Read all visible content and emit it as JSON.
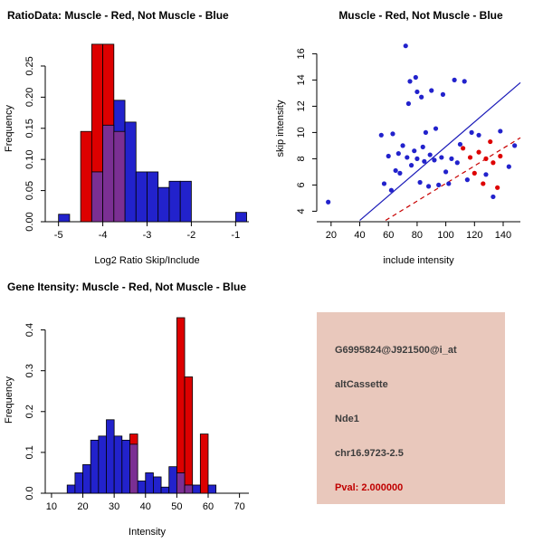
{
  "colors": {
    "red": "#dd0000",
    "blue": "#2222cc",
    "overlap": "#7b2f93",
    "line_blue": "#1a1ab8",
    "line_red": "#c80000",
    "info_bg": "#e9c8bc",
    "pval_red": "#c00000"
  },
  "info_box": {
    "probe_id": "G6995824@J921500@i_at",
    "splice_type": "altCassette",
    "gene_name": "Nde1",
    "locus": "chr16.9723-2.5",
    "pval": "Pval: 2.000000"
  },
  "chart_data": [
    {
      "type": "bar",
      "variant": "overlaid-histogram",
      "title": "RatioData: Muscle - Red, Not Muscle - Blue",
      "xlabel": "Log2 Ratio Skip/Include",
      "ylabel": "Frequency",
      "xlim": [
        -5.3,
        -0.7
      ],
      "ylim": [
        0,
        0.295
      ],
      "bin_width": 0.25,
      "grid": false,
      "xticks": {
        "values": [
          -5,
          -4,
          -3,
          -2,
          -1
        ],
        "labels": [
          "-5",
          "-4",
          "-3",
          "-2",
          "-1"
        ]
      },
      "yticks": {
        "values": [
          0,
          0.05,
          0.1,
          0.15,
          0.2,
          0.25
        ],
        "labels": [
          "0.00",
          "0.05",
          "0.10",
          "0.15",
          "0.20",
          "0.25"
        ]
      },
      "series": [
        {
          "name": "Muscle",
          "color": "red",
          "bins": [
            {
              "x": -4.5,
              "h": 0.145
            },
            {
              "x": -4.25,
              "h": 0.285
            },
            {
              "x": -4.0,
              "h": 0.285
            },
            {
              "x": -3.75,
              "h": 0.145
            }
          ]
        },
        {
          "name": "Not Muscle",
          "color": "blue",
          "bins": [
            {
              "x": -5.0,
              "h": 0.012
            },
            {
              "x": -4.25,
              "h": 0.08
            },
            {
              "x": -4.0,
              "h": 0.155
            },
            {
              "x": -3.75,
              "h": 0.195
            },
            {
              "x": -3.5,
              "h": 0.16
            },
            {
              "x": -3.25,
              "h": 0.08
            },
            {
              "x": -3.0,
              "h": 0.08
            },
            {
              "x": -2.75,
              "h": 0.055
            },
            {
              "x": -2.5,
              "h": 0.065
            },
            {
              "x": -2.25,
              "h": 0.065
            },
            {
              "x": -1.0,
              "h": 0.015
            }
          ]
        }
      ]
    },
    {
      "type": "scatter",
      "title": "Muscle - Red, Not Muscle - Blue",
      "xlabel": "include intensity",
      "ylabel": "skip intensity",
      "xlim": [
        10,
        152
      ],
      "ylim": [
        3.2,
        17.2
      ],
      "grid": false,
      "xticks": {
        "values": [
          20,
          40,
          60,
          80,
          100,
          120,
          140
        ],
        "labels": [
          "20",
          "40",
          "60",
          "80",
          "100",
          "120",
          "140"
        ]
      },
      "yticks": {
        "values": [
          4,
          6,
          8,
          10,
          12,
          14,
          16
        ],
        "labels": [
          "4",
          "6",
          "8",
          "10",
          "12",
          "14",
          "16"
        ]
      },
      "series": [
        {
          "name": "Not Muscle",
          "color": "blue",
          "points": [
            [
              18,
              4.7
            ],
            [
              55,
              9.8
            ],
            [
              57,
              6.1
            ],
            [
              60,
              8.2
            ],
            [
              62,
              5.6
            ],
            [
              63,
              9.9
            ],
            [
              65,
              7.1
            ],
            [
              67,
              8.4
            ],
            [
              68,
              6.9
            ],
            [
              70,
              9.0
            ],
            [
              72,
              16.6
            ],
            [
              73,
              8.1
            ],
            [
              74,
              12.2
            ],
            [
              75,
              13.9
            ],
            [
              76,
              7.5
            ],
            [
              78,
              8.6
            ],
            [
              79,
              14.2
            ],
            [
              80,
              13.1
            ],
            [
              80,
              8.0
            ],
            [
              82,
              6.2
            ],
            [
              83,
              12.7
            ],
            [
              84,
              8.9
            ],
            [
              85,
              7.8
            ],
            [
              86,
              10.0
            ],
            [
              88,
              5.9
            ],
            [
              89,
              8.3
            ],
            [
              90,
              13.2
            ],
            [
              92,
              7.9
            ],
            [
              93,
              10.3
            ],
            [
              95,
              6.0
            ],
            [
              97,
              8.1
            ],
            [
              98,
              12.9
            ],
            [
              100,
              7.0
            ],
            [
              102,
              6.1
            ],
            [
              104,
              8.0
            ],
            [
              106,
              14.0
            ],
            [
              108,
              7.7
            ],
            [
              110,
              9.1
            ],
            [
              113,
              13.9
            ],
            [
              115,
              6.4
            ],
            [
              118,
              10.0
            ],
            [
              123,
              9.8
            ],
            [
              128,
              6.8
            ],
            [
              133,
              5.1
            ],
            [
              138,
              10.1
            ],
            [
              144,
              7.4
            ],
            [
              148,
              9.0
            ]
          ]
        },
        {
          "name": "Muscle",
          "color": "red",
          "points": [
            [
              112,
              8.8
            ],
            [
              117,
              8.1
            ],
            [
              120,
              6.9
            ],
            [
              123,
              8.5
            ],
            [
              126,
              6.1
            ],
            [
              128,
              8.0
            ],
            [
              131,
              9.3
            ],
            [
              133,
              7.7
            ],
            [
              136,
              5.8
            ],
            [
              138,
              8.2
            ]
          ]
        }
      ],
      "lines": [
        {
          "name": "not-muscle-fit",
          "color_key": "line_blue",
          "style": "solid",
          "from": [
            40,
            3.3
          ],
          "to": [
            152,
            13.8
          ]
        },
        {
          "name": "muscle-fit",
          "color_key": "line_red",
          "style": "dashed",
          "from": [
            58,
            3.3
          ],
          "to": [
            152,
            9.6
          ]
        }
      ]
    },
    {
      "type": "bar",
      "variant": "overlaid-histogram",
      "title": "Gene Itensity: Muscle - Red, Not Muscle - Blue",
      "xlabel": "Intensity",
      "ylabel": "Frequency",
      "xlim": [
        8,
        73
      ],
      "ylim": [
        0,
        0.45
      ],
      "bin_width": 2.5,
      "grid": false,
      "xticks": {
        "values": [
          10,
          20,
          30,
          40,
          50,
          60,
          70
        ],
        "labels": [
          "10",
          "20",
          "30",
          "40",
          "50",
          "60",
          "70"
        ]
      },
      "yticks": {
        "values": [
          0,
          0.1,
          0.2,
          0.3,
          0.4
        ],
        "labels": [
          "0.0",
          "0.1",
          "0.2",
          "0.3",
          "0.4"
        ]
      },
      "series": [
        {
          "name": "Muscle",
          "color": "red",
          "bins": [
            {
              "x": 35,
              "h": 0.145
            },
            {
              "x": 50,
              "h": 0.43
            },
            {
              "x": 52.5,
              "h": 0.285
            },
            {
              "x": 57.5,
              "h": 0.145
            }
          ]
        },
        {
          "name": "Not Muscle",
          "color": "blue",
          "bins": [
            {
              "x": 15,
              "h": 0.02
            },
            {
              "x": 17.5,
              "h": 0.05
            },
            {
              "x": 20,
              "h": 0.07
            },
            {
              "x": 22.5,
              "h": 0.13
            },
            {
              "x": 25,
              "h": 0.14
            },
            {
              "x": 27.5,
              "h": 0.18
            },
            {
              "x": 30,
              "h": 0.14
            },
            {
              "x": 32.5,
              "h": 0.13
            },
            {
              "x": 35,
              "h": 0.12
            },
            {
              "x": 37.5,
              "h": 0.03
            },
            {
              "x": 40,
              "h": 0.05
            },
            {
              "x": 42.5,
              "h": 0.04
            },
            {
              "x": 45,
              "h": 0.015
            },
            {
              "x": 47.5,
              "h": 0.065
            },
            {
              "x": 50,
              "h": 0.05
            },
            {
              "x": 52.5,
              "h": 0.02
            },
            {
              "x": 55,
              "h": 0.02
            },
            {
              "x": 60,
              "h": 0.02
            }
          ]
        }
      ]
    }
  ]
}
